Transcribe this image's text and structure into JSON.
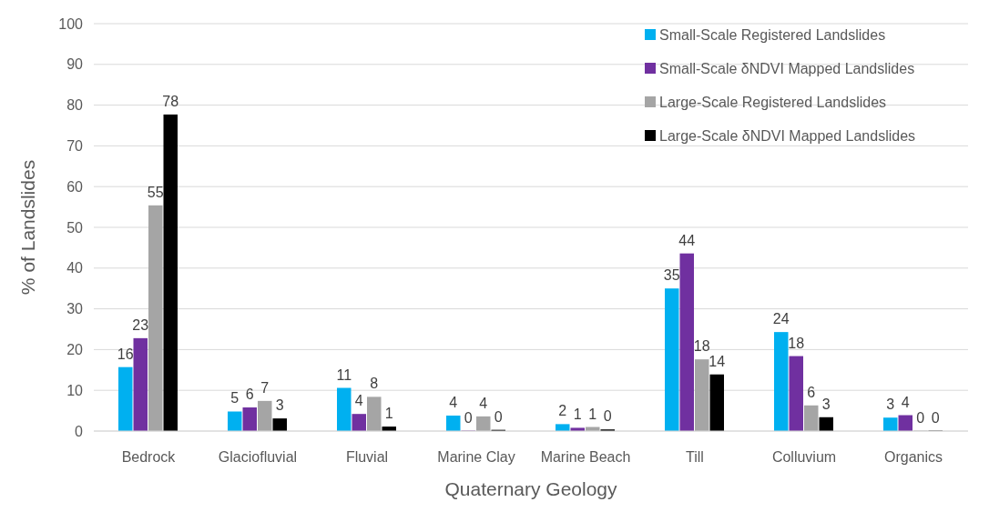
{
  "chart_data": {
    "type": "bar",
    "xlabel": "Quaternary Geology",
    "ylabel": "% of Landslides",
    "categories": [
      "Bedrock",
      "Glaciofluvial",
      "Fluvial",
      "Marine Clay",
      "Marine Beach",
      "Till",
      "Colluvium",
      "Organics"
    ],
    "ylim": [
      0,
      100
    ],
    "yticks": [
      0,
      10,
      20,
      30,
      40,
      50,
      60,
      70,
      80,
      90,
      100
    ],
    "grid": "y",
    "legend": "top right",
    "series": [
      {
        "name": "Small-Scale Registered Landslides",
        "color": "#00b0f0",
        "values": [
          15.7,
          4.8,
          10.6,
          3.8,
          1.7,
          35.0,
          24.3,
          3.3
        ],
        "value_labels": [
          "16",
          "5",
          "11",
          "4",
          "2",
          "35",
          "24",
          "3"
        ]
      },
      {
        "name": "Small-Scale δNDVI Mapped Landslides",
        "color": "#7030a0",
        "values": [
          22.8,
          5.8,
          4.2,
          0.1,
          0.8,
          43.6,
          18.4,
          3.9
        ],
        "value_labels": [
          "23",
          "6",
          "4",
          "0",
          "1",
          "44",
          "18",
          "4"
        ]
      },
      {
        "name": "Large-Scale Registered Landslides",
        "color": "#a5a5a5",
        "values": [
          55.4,
          7.4,
          8.4,
          3.6,
          1.0,
          17.6,
          6.3,
          0.1
        ],
        "value_labels": [
          "55",
          "7",
          "8",
          "4",
          "1",
          "18",
          "6",
          "0"
        ]
      },
      {
        "name": "Large-Scale δNDVI Mapped Landslides",
        "color": "#000000",
        "values": [
          77.7,
          3.1,
          1.1,
          0.3,
          0.4,
          13.9,
          3.4,
          0.1
        ],
        "value_labels": [
          "78",
          "3",
          "1",
          "0",
          "0",
          "14",
          "3",
          "0"
        ]
      }
    ]
  }
}
